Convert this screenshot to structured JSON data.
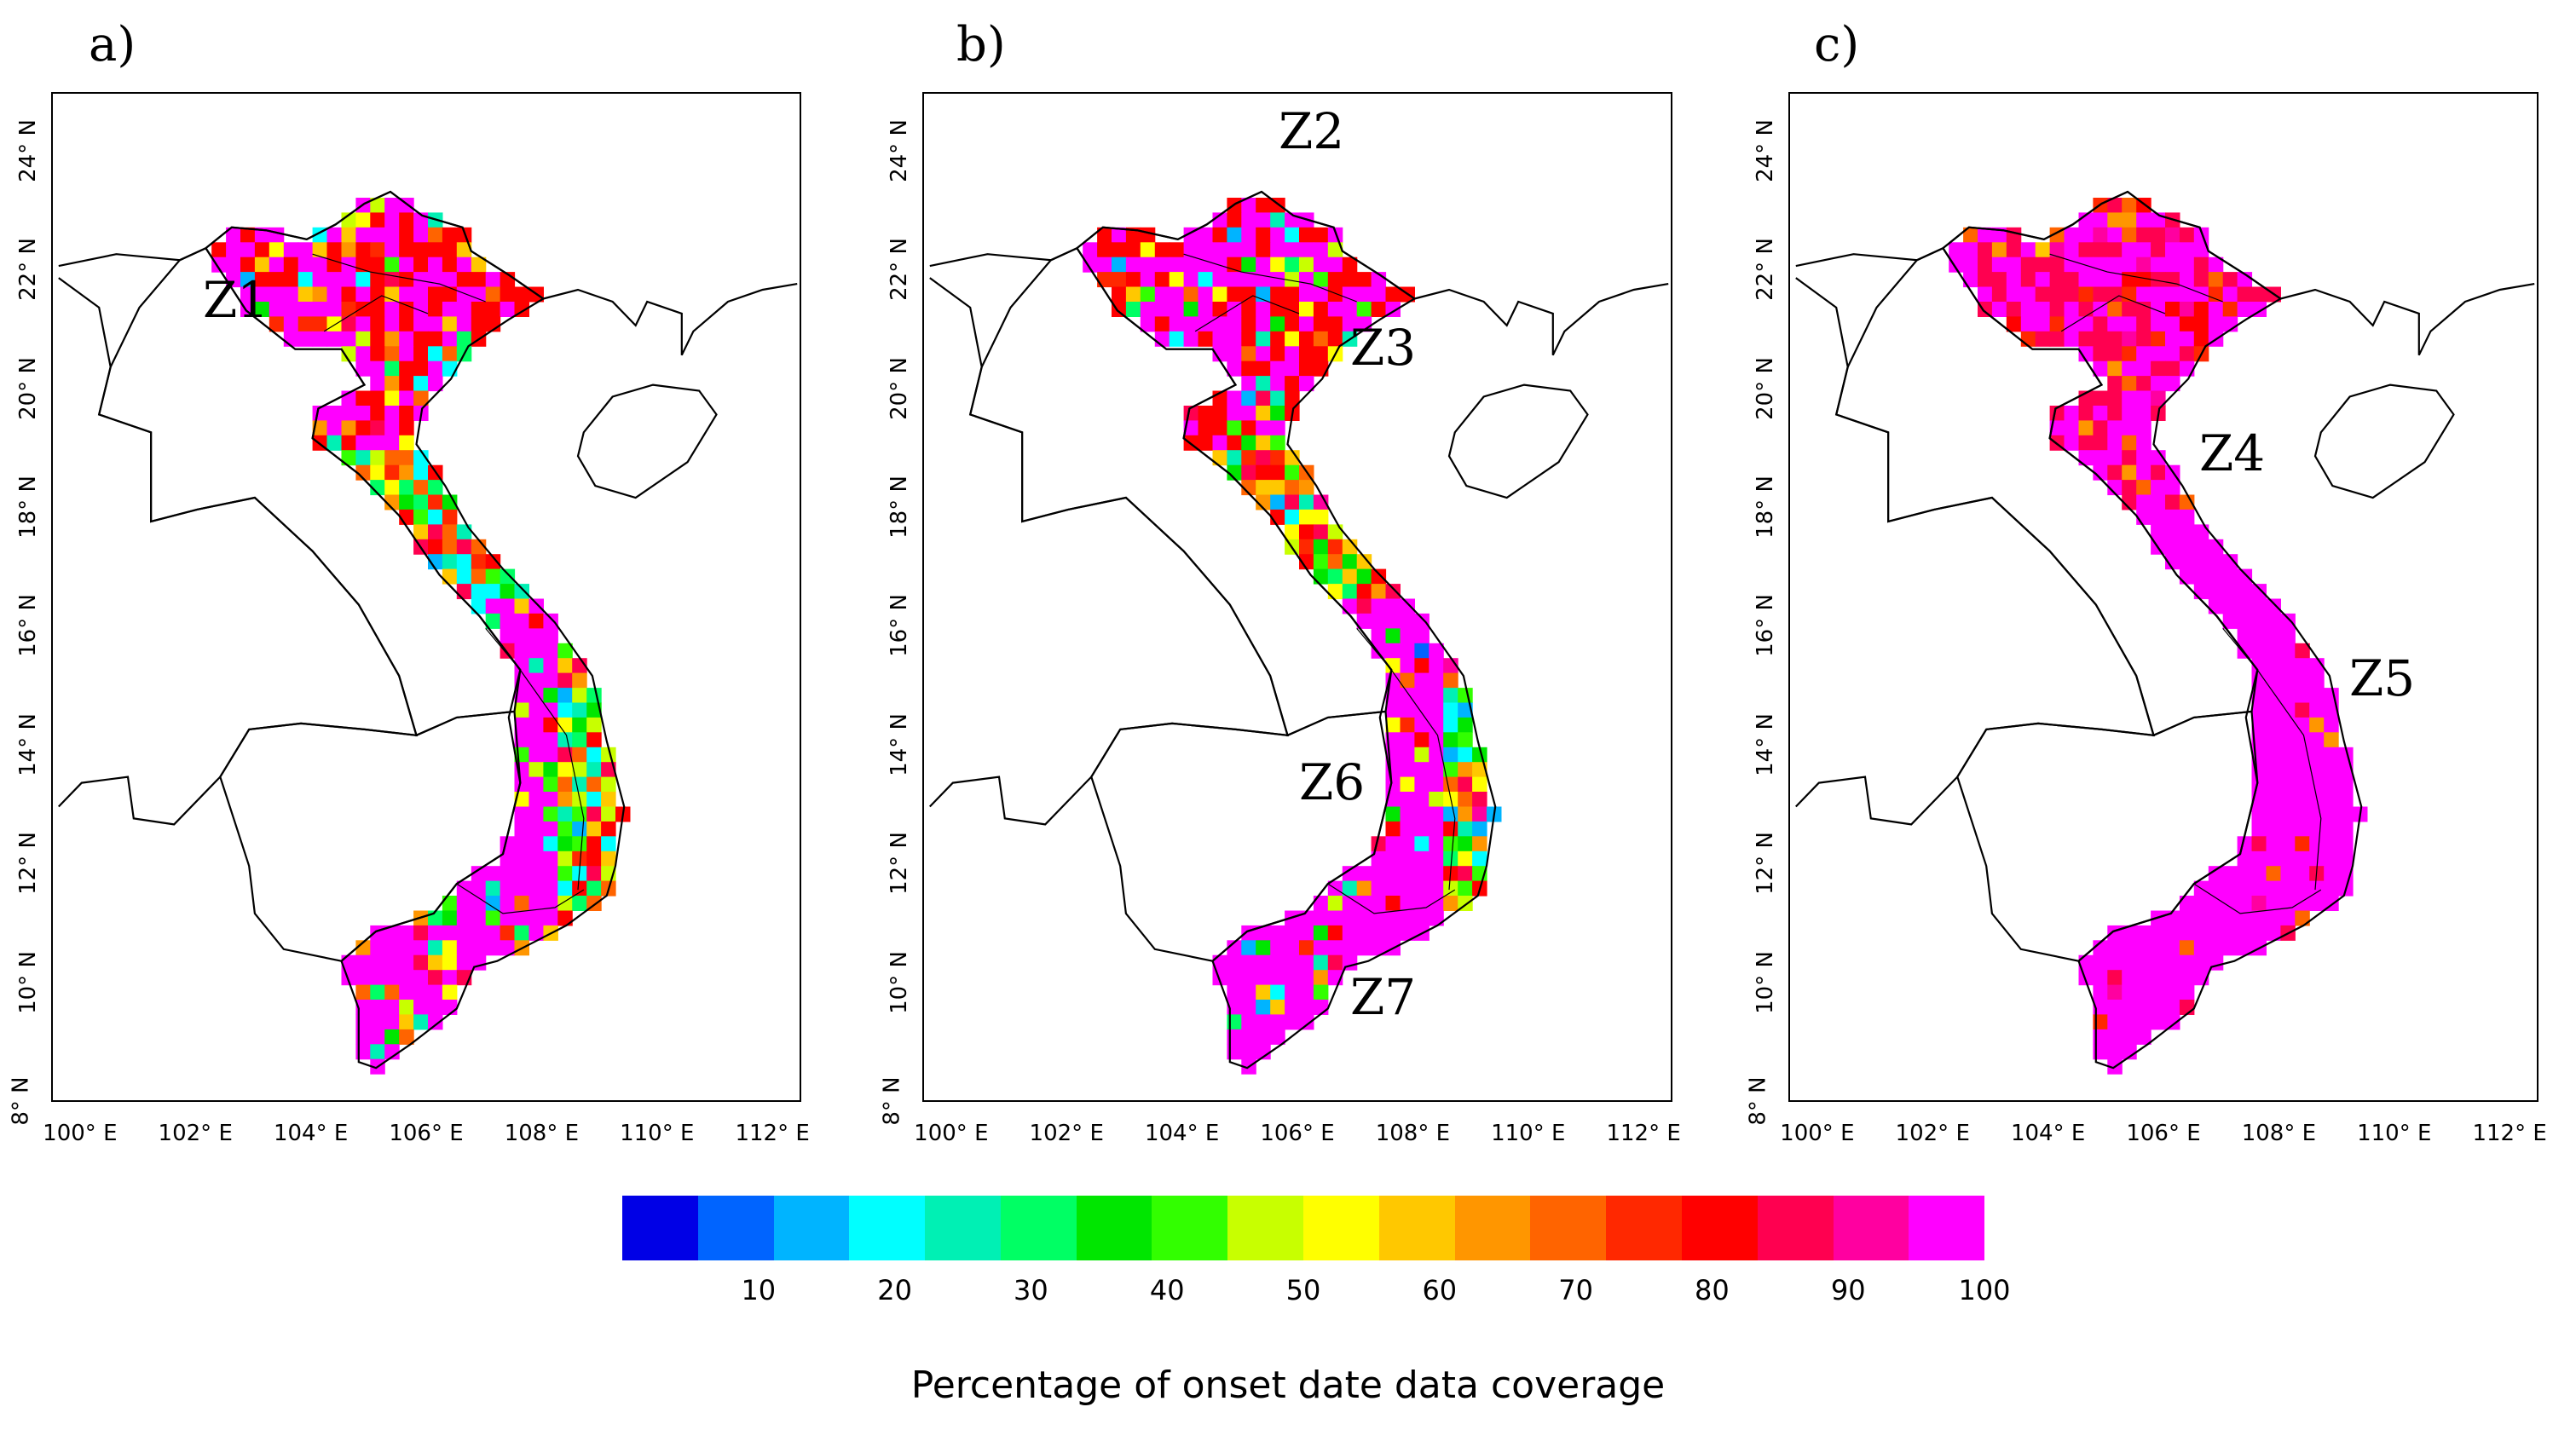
{
  "panels": [
    {
      "letter": "a)",
      "zones": [
        "Z1"
      ]
    },
    {
      "letter": "b)",
      "zones": [
        "Z2",
        "Z3",
        "Z6",
        "Z7"
      ]
    },
    {
      "letter": "c)",
      "zones": [
        "Z4",
        "Z5"
      ]
    }
  ],
  "axes": {
    "lat_ticks": [
      "24° N",
      "22° N",
      "20° N",
      "18° N",
      "16° N",
      "14° N",
      "12° N",
      "10° N",
      "8° N"
    ],
    "lon_ticks": [
      "100° E",
      "102° E",
      "104° E",
      "106° E",
      "108° E",
      "110° E",
      "112° E"
    ],
    "lat_range": [
      8,
      25
    ],
    "lon_range": [
      99.5,
      112.5
    ]
  },
  "colorbar": {
    "title": "Percentage of onset date data coverage",
    "ticks": [
      "10",
      "20",
      "30",
      "40",
      "50",
      "60",
      "70",
      "80",
      "90",
      "100"
    ],
    "range": [
      0,
      100
    ],
    "colors": [
      "#0000e6",
      "#0064ff",
      "#00b4ff",
      "#00ffff",
      "#00f0b4",
      "#00ff64",
      "#00e600",
      "#32ff00",
      "#c8ff00",
      "#ffff00",
      "#ffc800",
      "#ff9600",
      "#ff6400",
      "#ff2800",
      "#ff0000",
      "#ff0050",
      "#ff00a0",
      "#ff00ff"
    ]
  },
  "colors": {
    "high_coverage": "#ff00ff",
    "border": "#000000"
  }
}
